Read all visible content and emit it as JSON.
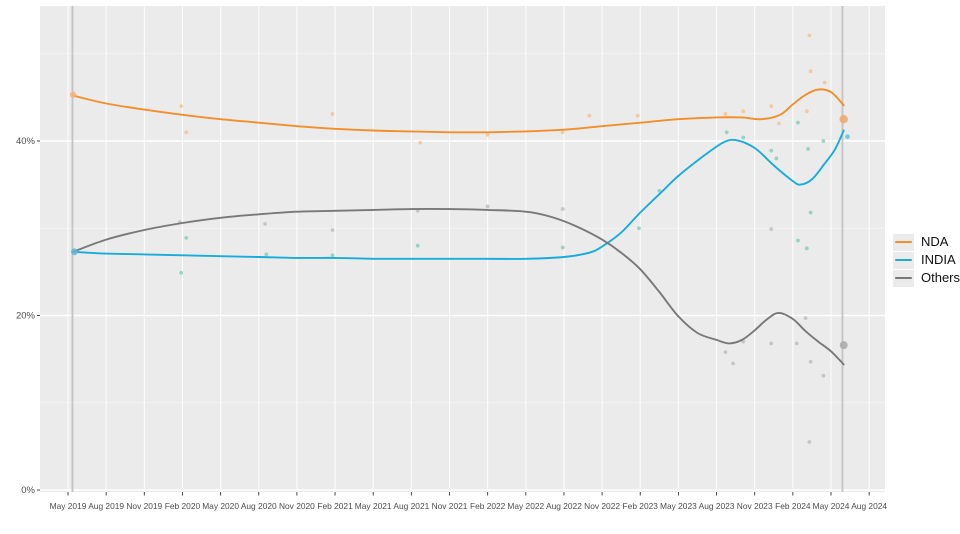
{
  "chart_data": {
    "type": "line",
    "title": "",
    "description": "Opinion poll tracker of alliance vote share, May 2019 - Aug 2024, with smoothed trend lines for NDA, INDIA and Others plus individual poll scatter points and election-result markers",
    "x_tick_labels": [
      "May 2019",
      "Aug 2019",
      "Nov 2019",
      "Feb 2020",
      "May 2020",
      "Aug 2020",
      "Nov 2020",
      "Feb 2021",
      "May 2021",
      "Aug 2021",
      "Nov 2021",
      "Feb 2022",
      "May 2022",
      "Aug 2022",
      "Nov 2022",
      "Feb 2023",
      "May 2023",
      "Aug 2023",
      "Nov 2023",
      "Feb 2024",
      "May 2024",
      "Aug 2024"
    ],
    "x_tick_months": [
      0,
      3,
      6,
      9,
      12,
      15,
      18,
      21,
      24,
      27,
      30,
      33,
      36,
      39,
      42,
      45,
      48,
      51,
      54,
      57,
      60,
      63
    ],
    "y_tick_labels": [
      "0%",
      "20%",
      "40%"
    ],
    "y_ticks_pct": [
      0,
      20,
      40
    ],
    "y_minor_pct": [
      10,
      30,
      50
    ],
    "ylim": [
      0,
      55.5
    ],
    "grid": true,
    "legend_position": "right",
    "reference_lines_months": [
      0.35,
      60.9
    ],
    "colors": {
      "panel_bg": "#ebebeb",
      "grid_major": "#ffffff",
      "grid_minor": "rgba(255,255,255,0.55)",
      "ref_line": "#c3c3c3",
      "axis_text": "#4d4d4d",
      "tick_mark": "#333333",
      "nda": "#F28E2B",
      "india": "#17ACDC",
      "others": "#787878",
      "nda_scatter": "#F6C08C",
      "india_scatter": "#7FCDBB",
      "others_scatter": "#BBBBBB"
    },
    "legend": [
      {
        "label": "NDA",
        "color": "#F28E2B"
      },
      {
        "label": "INDIA",
        "color": "#17ACDC"
      },
      {
        "label": "Others",
        "color": "#787878"
      }
    ],
    "series": [
      {
        "name": "NDA",
        "color": "#F28E2B",
        "points": [
          [
            0.4,
            45.2
          ],
          [
            3,
            44.3
          ],
          [
            6,
            43.6
          ],
          [
            9,
            43.0
          ],
          [
            12,
            42.5
          ],
          [
            15,
            42.1
          ],
          [
            18,
            41.7
          ],
          [
            21,
            41.4
          ],
          [
            24,
            41.2
          ],
          [
            27,
            41.1
          ],
          [
            30,
            41.0
          ],
          [
            33,
            41.0
          ],
          [
            36,
            41.1
          ],
          [
            39,
            41.3
          ],
          [
            42,
            41.7
          ],
          [
            45,
            42.1
          ],
          [
            48,
            42.5
          ],
          [
            51,
            42.7
          ],
          [
            53,
            42.7
          ],
          [
            54.5,
            42.5
          ],
          [
            56,
            43.0
          ],
          [
            57,
            44.2
          ],
          [
            58,
            45.3
          ],
          [
            59,
            45.9
          ],
          [
            60,
            45.6
          ],
          [
            61.0,
            44.1
          ]
        ]
      },
      {
        "name": "INDIA",
        "color": "#17ACDC",
        "points": [
          [
            0.4,
            27.3
          ],
          [
            3,
            27.1
          ],
          [
            6,
            27.0
          ],
          [
            9,
            26.9
          ],
          [
            12,
            26.8
          ],
          [
            15,
            26.7
          ],
          [
            18,
            26.6
          ],
          [
            21,
            26.6
          ],
          [
            24,
            26.5
          ],
          [
            27,
            26.5
          ],
          [
            30,
            26.5
          ],
          [
            33,
            26.5
          ],
          [
            36,
            26.5
          ],
          [
            39,
            26.7
          ],
          [
            41,
            27.2
          ],
          [
            42,
            27.9
          ],
          [
            43.5,
            29.5
          ],
          [
            45,
            31.8
          ],
          [
            46.5,
            33.9
          ],
          [
            48,
            36.0
          ],
          [
            50,
            38.3
          ],
          [
            51.5,
            39.8
          ],
          [
            52.5,
            40.1
          ],
          [
            54,
            39.2
          ],
          [
            55.5,
            37.2
          ],
          [
            57,
            35.4
          ],
          [
            57.6,
            35.0
          ],
          [
            58.5,
            35.6
          ],
          [
            59.5,
            37.4
          ],
          [
            60.3,
            39.0
          ],
          [
            61.0,
            41.2
          ]
        ]
      },
      {
        "name": "Others",
        "color": "#787878",
        "points": [
          [
            0.4,
            27.3
          ],
          [
            3,
            28.7
          ],
          [
            6,
            29.8
          ],
          [
            9,
            30.6
          ],
          [
            12,
            31.2
          ],
          [
            15,
            31.6
          ],
          [
            18,
            31.9
          ],
          [
            21,
            32.0
          ],
          [
            24,
            32.1
          ],
          [
            27,
            32.2
          ],
          [
            30,
            32.2
          ],
          [
            33,
            32.1
          ],
          [
            36,
            31.9
          ],
          [
            38,
            31.3
          ],
          [
            40,
            30.2
          ],
          [
            42,
            28.7
          ],
          [
            43.5,
            27.2
          ],
          [
            45,
            25.3
          ],
          [
            46.5,
            22.7
          ],
          [
            48,
            19.9
          ],
          [
            49.5,
            18.0
          ],
          [
            51,
            17.2
          ],
          [
            52,
            16.8
          ],
          [
            53,
            17.2
          ],
          [
            54,
            18.3
          ],
          [
            55,
            19.6
          ],
          [
            55.9,
            20.3
          ],
          [
            57,
            19.6
          ],
          [
            58,
            18.2
          ],
          [
            59,
            17.0
          ],
          [
            60,
            15.9
          ],
          [
            61.0,
            14.4
          ]
        ]
      }
    ],
    "scatter": [
      {
        "series": "NDA",
        "color": "#F6C08C",
        "points": [
          [
            8.9,
            44.0
          ],
          [
            9.3,
            41.0
          ],
          [
            20.8,
            43.1
          ],
          [
            27.7,
            39.8
          ],
          [
            33.0,
            40.7
          ],
          [
            38.9,
            41.0
          ],
          [
            41.0,
            42.9
          ],
          [
            44.8,
            42.9
          ],
          [
            51.7,
            43.1
          ],
          [
            53.1,
            43.4
          ],
          [
            55.3,
            44.0
          ],
          [
            55.9,
            42.0
          ],
          [
            58.1,
            43.4
          ],
          [
            58.3,
            52.1
          ],
          [
            58.4,
            48.0
          ],
          [
            59.5,
            46.7
          ]
        ]
      },
      {
        "series": "INDIA",
        "color": "#7FCDBB",
        "points": [
          [
            8.9,
            24.9
          ],
          [
            9.3,
            28.9
          ],
          [
            15.6,
            27.0
          ],
          [
            20.8,
            26.9
          ],
          [
            27.5,
            28.0
          ],
          [
            38.9,
            27.8
          ],
          [
            44.9,
            30.0
          ],
          [
            46.5,
            34.3
          ],
          [
            51.8,
            41.0
          ],
          [
            53.1,
            40.4
          ],
          [
            55.3,
            38.9
          ],
          [
            55.7,
            38.0
          ],
          [
            57.4,
            42.1
          ],
          [
            57.4,
            28.6
          ],
          [
            58.1,
            27.7
          ],
          [
            58.2,
            39.1
          ],
          [
            58.4,
            31.8
          ],
          [
            59.4,
            40.0
          ]
        ]
      },
      {
        "series": "Others",
        "color": "#BBBBBB",
        "points": [
          [
            8.8,
            30.7
          ],
          [
            15.5,
            30.5
          ],
          [
            20.8,
            29.8
          ],
          [
            27.5,
            32.0
          ],
          [
            33.0,
            32.5
          ],
          [
            38.9,
            32.2
          ],
          [
            51.7,
            15.8
          ],
          [
            52.3,
            14.5
          ],
          [
            53.1,
            17.0
          ],
          [
            55.3,
            16.8
          ],
          [
            55.3,
            29.9
          ],
          [
            57.3,
            16.8
          ],
          [
            58.0,
            19.7
          ],
          [
            58.3,
            5.5
          ],
          [
            58.4,
            14.7
          ],
          [
            59.4,
            13.1
          ]
        ]
      }
    ],
    "markers": [
      {
        "series": "NDA",
        "month": 0.4,
        "value": 45.3,
        "r": 3.2,
        "color": "#F3B47E"
      },
      {
        "series": "INDIA",
        "month": 0.5,
        "value": 27.3,
        "r": 3.4,
        "color": "#5FB6D8"
      },
      {
        "series": "NDA",
        "month": 61.0,
        "value": 42.5,
        "r": 4.2,
        "color": "#EFA76A"
      },
      {
        "series": "Others",
        "month": 61.0,
        "value": 16.6,
        "r": 4.0,
        "color": "#A9A9A9"
      },
      {
        "series": "INDIA",
        "month": 61.3,
        "value": 40.5,
        "r": 2.4,
        "color": "#5FC4E2"
      }
    ]
  }
}
